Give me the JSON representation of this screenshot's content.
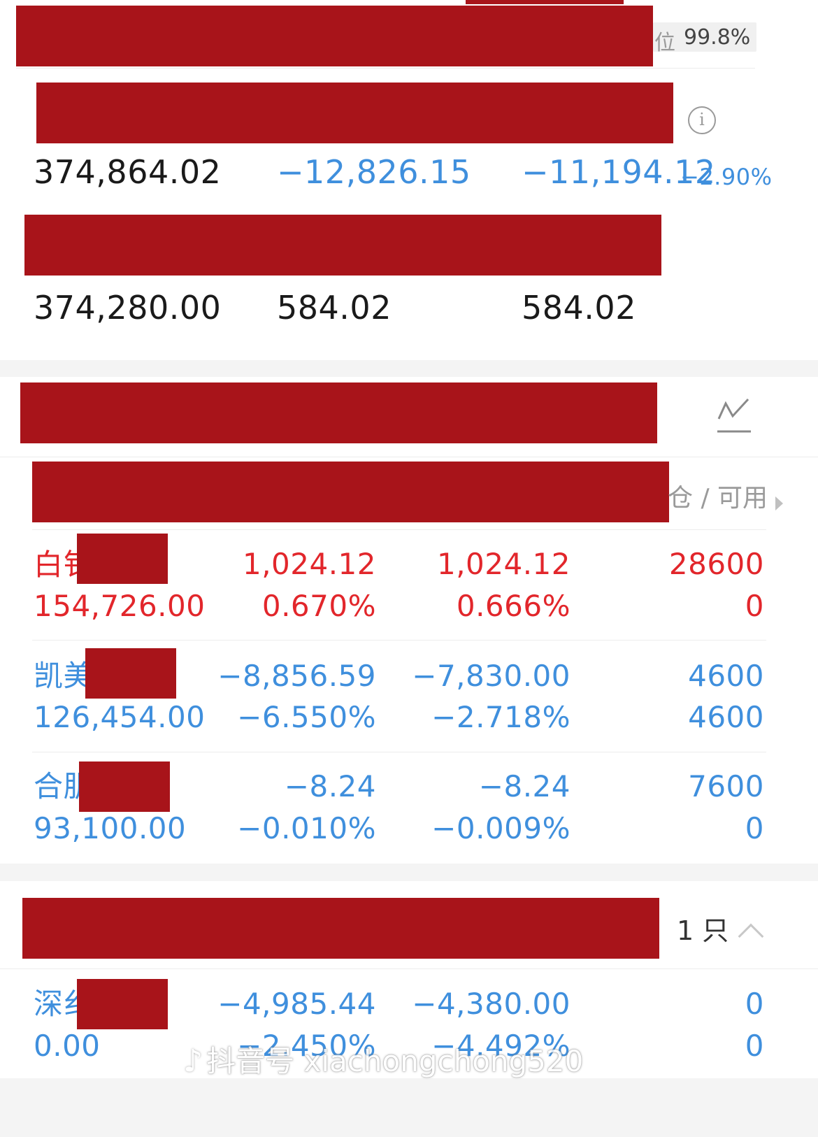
{
  "summary": {
    "position_suffix": "位",
    "position_value": "99.8%",
    "row1": {
      "col1": "374,864.02",
      "col2": "−12,826.15",
      "col3": "−11,194.12",
      "col3_pct": "−2.90%"
    },
    "row2": {
      "col1": "374,280.00",
      "col2": "584.02",
      "col3": "584.02"
    }
  },
  "holdings": {
    "header_tail": "仓 / 可用",
    "rows": [
      {
        "name": "白钅",
        "market_value": "154,726.00",
        "pl1": "1,024.12",
        "pl1_pct": "0.670%",
        "pl2": "1,024.12",
        "pl2_pct": "0.666%",
        "qty": "28600",
        "avail": "0",
        "color": "#e2262b"
      },
      {
        "name": "凯美",
        "market_value": "126,454.00",
        "pl1": "−8,856.59",
        "pl1_pct": "−6.550%",
        "pl2": "−7,830.00",
        "pl2_pct": "−2.718%",
        "qty": "4600",
        "avail": "4600",
        "color": "#3f8fdd"
      },
      {
        "name": "合肌",
        "market_value": "93,100.00",
        "pl1": "−8.24",
        "pl1_pct": "−0.010%",
        "pl2": "−8.24",
        "pl2_pct": "−0.009%",
        "qty": "7600",
        "avail": "0",
        "color": "#3f8fdd"
      }
    ]
  },
  "cleared": {
    "count": "1 只",
    "rows": [
      {
        "name": "深纟",
        "market_value": "0.00",
        "pl1": "−4,985.44",
        "pl1_pct": "−2.450%",
        "pl2": "−4,380.00",
        "pl2_pct": "−4.492%",
        "qty": "0",
        "avail": "0",
        "color": "#3f8fdd"
      }
    ]
  },
  "watermark": "抖音号 xiachongchong520",
  "colors": {
    "redaction": "#a8141a",
    "positive": "#e2262b",
    "negative": "#3f8fdd"
  }
}
